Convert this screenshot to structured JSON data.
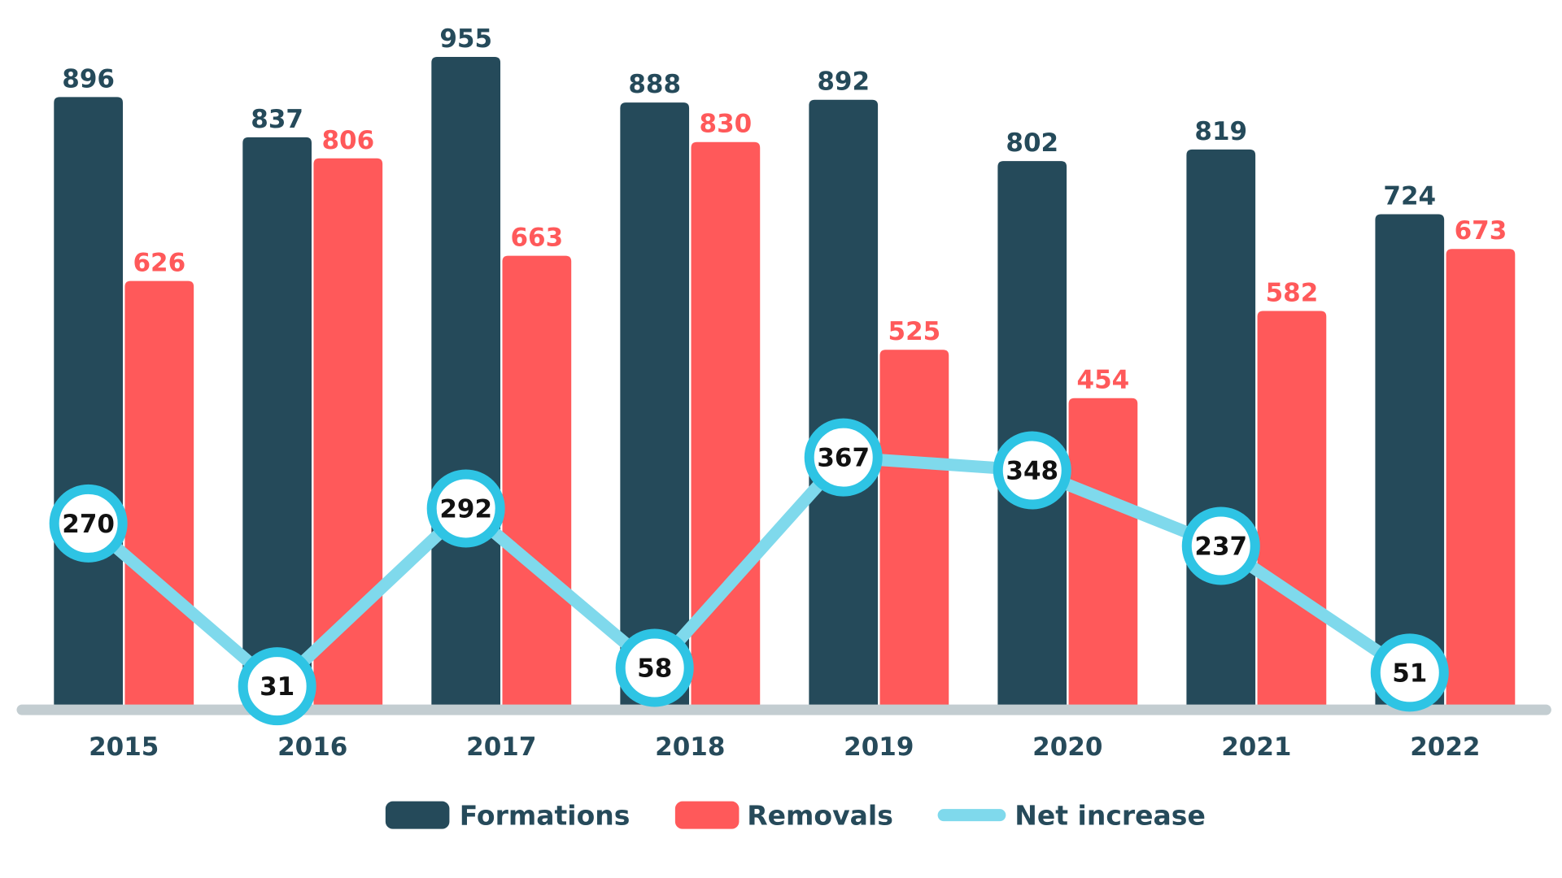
{
  "chart_data": {
    "type": "bar",
    "categories": [
      "2015",
      "2016",
      "2017",
      "2018",
      "2019",
      "2020",
      "2021",
      "2022"
    ],
    "series": [
      {
        "name": "Formations",
        "type": "bar",
        "color": "#254a5a",
        "values": [
          896,
          837,
          955,
          888,
          892,
          802,
          819,
          724
        ]
      },
      {
        "name": "Removals",
        "type": "bar",
        "color": "#ff595a",
        "values": [
          626,
          806,
          663,
          830,
          525,
          454,
          582,
          673
        ]
      },
      {
        "name": "Net increase",
        "type": "line",
        "color": "#7fd9ec",
        "marker_color": "#2ec4e4",
        "values": [
          270,
          31,
          292,
          58,
          367,
          348,
          237,
          51
        ]
      }
    ],
    "ylim": [
      0,
      1000
    ],
    "grid": false,
    "legend_position": "bottom",
    "baseline_color": "#c3cdd1"
  }
}
